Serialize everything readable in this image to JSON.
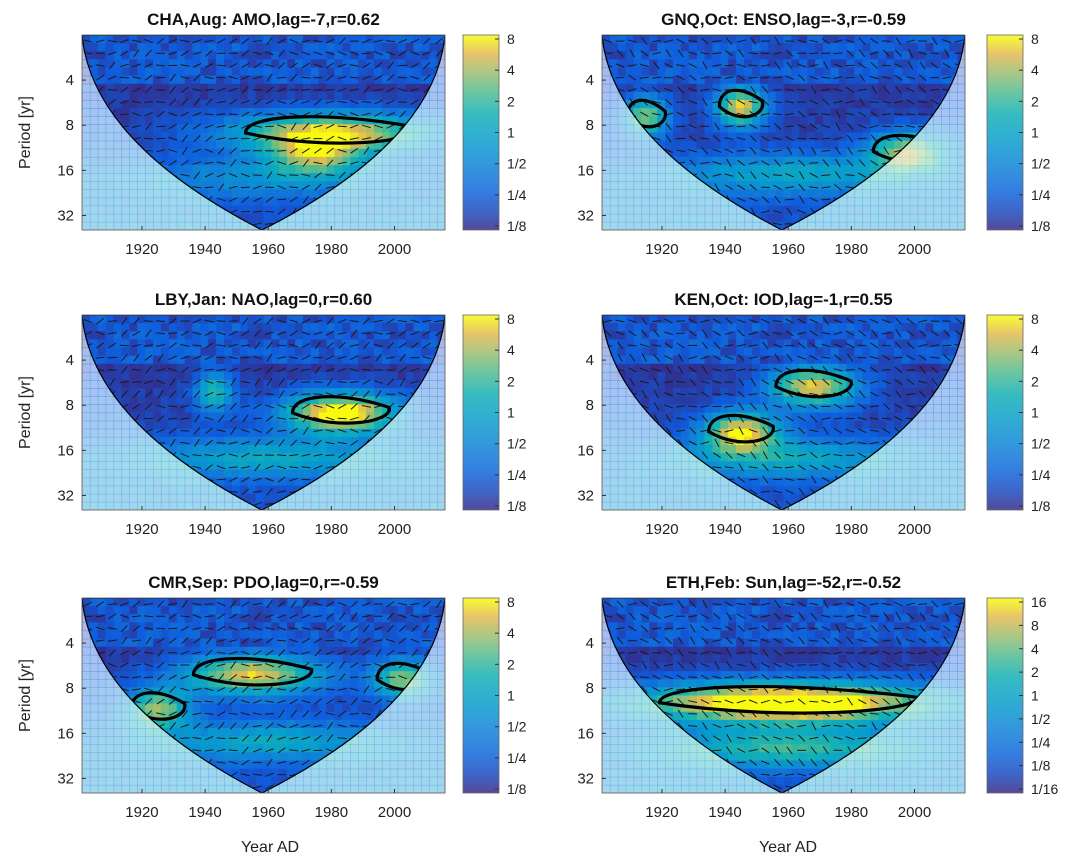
{
  "figure": {
    "xlabel_text": "Year AD",
    "ylabel_text": "Period [yr]"
  },
  "chart_data": [
    {
      "type": "heatmap",
      "title": "CHA,Aug: AMO,lag=-7,r=0.62",
      "xlabel": "",
      "ylabel": "Period [yr]",
      "x_ticks": [
        "1920",
        "1940",
        "1960",
        "1980",
        "2000"
      ],
      "y_ticks": [
        "4",
        "8",
        "16",
        "32"
      ],
      "xlim": [
        1901,
        2016
      ],
      "ylim_period": [
        2,
        40
      ],
      "y_scale": "log2",
      "colorbar_ticks": [
        "8",
        "4",
        "2",
        "1",
        "1/2",
        "1/4",
        "1/8"
      ],
      "colormap": "parula",
      "coi_center_year": 1958,
      "coherence_bands": [
        {
          "center_year": 1980,
          "half_width_years": 32,
          "period": 9,
          "strength": 3.0
        },
        {
          "center_year": 1975,
          "half_width_years": 15,
          "period": 13,
          "strength": 2.0
        },
        {
          "center_year": 1955,
          "half_width_years": 40,
          "period": 18,
          "strength": 1.0
        }
      ]
    },
    {
      "type": "heatmap",
      "title": "GNQ,Oct: ENSO,lag=-3,r=-0.59",
      "xlabel": "",
      "ylabel": "",
      "x_ticks": [
        "1920",
        "1940",
        "1960",
        "1980",
        "2000"
      ],
      "y_ticks": [
        "4",
        "8",
        "16",
        "32"
      ],
      "xlim": [
        1901,
        2016
      ],
      "ylim_period": [
        2,
        40
      ],
      "y_scale": "log2",
      "colorbar_ticks": [
        "8",
        "4",
        "2",
        "1",
        "1/2",
        "1/4",
        "1/8"
      ],
      "colormap": "parula",
      "coi_center_year": 1958,
      "coherence_bands": [
        {
          "center_year": 1945,
          "half_width_years": 8,
          "period": 6,
          "strength": 3.0
        },
        {
          "center_year": 1915,
          "half_width_years": 7,
          "period": 7,
          "strength": 2.5
        },
        {
          "center_year": 1998,
          "half_width_years": 13,
          "period": 12,
          "strength": 2.5
        },
        {
          "center_year": 1960,
          "half_width_years": 40,
          "period": 17,
          "strength": 1.5
        }
      ]
    },
    {
      "type": "heatmap",
      "title": "LBY,Jan: NAO,lag=0,r=0.60",
      "xlabel": "",
      "ylabel": "Period [yr]",
      "x_ticks": [
        "1920",
        "1940",
        "1960",
        "1980",
        "2000"
      ],
      "y_ticks": [
        "4",
        "8",
        "16",
        "32"
      ],
      "xlim": [
        1901,
        2016
      ],
      "ylim_period": [
        2,
        40
      ],
      "y_scale": "log2",
      "colorbar_ticks": [
        "8",
        "4",
        "2",
        "1",
        "1/2",
        "1/4",
        "1/8"
      ],
      "colormap": "parula",
      "coi_center_year": 1958,
      "coherence_bands": [
        {
          "center_year": 1983,
          "half_width_years": 18,
          "period": 9,
          "strength": 3.5
        },
        {
          "center_year": 1943,
          "half_width_years": 6,
          "period": 6.5,
          "strength": 2.0
        },
        {
          "center_year": 1960,
          "half_width_years": 45,
          "period": 18,
          "strength": 1.5
        }
      ]
    },
    {
      "type": "heatmap",
      "title": "KEN,Oct: IOD,lag=-1,r=0.55",
      "xlabel": "",
      "ylabel": "",
      "x_ticks": [
        "1920",
        "1940",
        "1960",
        "1980",
        "2000"
      ],
      "y_ticks": [
        "4",
        "8",
        "16",
        "32"
      ],
      "xlim": [
        1901,
        2016
      ],
      "ylim_period": [
        2,
        40
      ],
      "y_scale": "log2",
      "colorbar_ticks": [
        "8",
        "4",
        "2",
        "1",
        "1/2",
        "1/4",
        "1/8"
      ],
      "colormap": "parula",
      "coi_center_year": 1958,
      "coherence_bands": [
        {
          "center_year": 1968,
          "half_width_years": 14,
          "period": 6,
          "strength": 3.0
        },
        {
          "center_year": 1945,
          "half_width_years": 12,
          "period": 12,
          "strength": 3.0
        },
        {
          "center_year": 1960,
          "half_width_years": 40,
          "period": 18,
          "strength": 1.5
        }
      ]
    },
    {
      "type": "heatmap",
      "title": "CMR,Sep: PDO,lag=0,r=-0.59",
      "xlabel": "Year AD",
      "ylabel": "Period [yr]",
      "x_ticks": [
        "1920",
        "1940",
        "1960",
        "1980",
        "2000"
      ],
      "y_ticks": [
        "4",
        "8",
        "16",
        "32"
      ],
      "xlim": [
        1901,
        2016
      ],
      "ylim_period": [
        2,
        40
      ],
      "y_scale": "log2",
      "colorbar_ticks": [
        "8",
        "4",
        "2",
        "1",
        "1/2",
        "1/4",
        "1/8"
      ],
      "colormap": "parula",
      "coi_center_year": 1958,
      "coherence_bands": [
        {
          "center_year": 1955,
          "half_width_years": 22,
          "period": 6.5,
          "strength": 3.0
        },
        {
          "center_year": 1925,
          "half_width_years": 10,
          "period": 11,
          "strength": 2.5
        },
        {
          "center_year": 2003,
          "half_width_years": 10,
          "period": 7,
          "strength": 2.5
        },
        {
          "center_year": 1960,
          "half_width_years": 40,
          "period": 18,
          "strength": 1.5
        }
      ]
    },
    {
      "type": "heatmap",
      "title": "ETH,Feb: Sun,lag=-52,r=-0.52",
      "xlabel": "Year AD",
      "ylabel": "",
      "x_ticks": [
        "1920",
        "1940",
        "1960",
        "1980",
        "2000"
      ],
      "y_ticks": [
        "4",
        "8",
        "16",
        "32"
      ],
      "xlim": [
        1901,
        2016
      ],
      "ylim_period": [
        2,
        40
      ],
      "y_scale": "log2",
      "colorbar_ticks": [
        "16",
        "8",
        "4",
        "2",
        "1",
        "1/2",
        "1/4",
        "1/8",
        "1/16"
      ],
      "colormap": "parula",
      "coi_center_year": 1958,
      "coherence_bands": [
        {
          "center_year": 1960,
          "half_width_years": 48,
          "period": 10,
          "strength": 4.0
        },
        {
          "center_year": 1960,
          "half_width_years": 40,
          "period": 20,
          "strength": 2.0
        }
      ]
    }
  ]
}
